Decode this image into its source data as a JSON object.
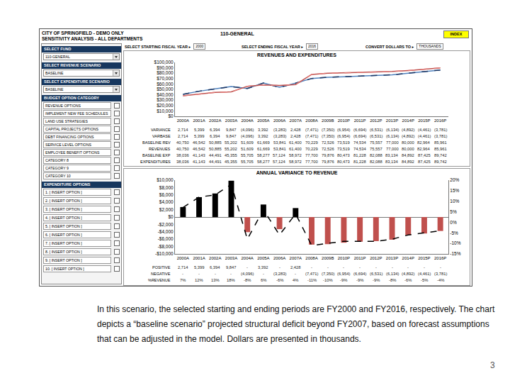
{
  "header": {
    "title_lines": [
      "CITY OF SPRINGFIELD - DEMO ONLY",
      "SENSITIVITY ANALYSIS - ALL DEPARTMENTS"
    ],
    "fund": "110-GENERAL",
    "button": "INDEX"
  },
  "controls": [
    {
      "label": "SELECT STARTING FISCAL YEAR ▸",
      "value": "2000"
    },
    {
      "label": "SELECT ENDING FISCAL YEAR ▸",
      "value": "2016"
    },
    {
      "label": "CONVERT DOLLARS TO ▸",
      "value": "THOUSANDS"
    }
  ],
  "panel": {
    "selectors": [
      {
        "label": "SELECT FUND",
        "value": "110-GENERAL"
      },
      {
        "label": "SELECT REVENUE SCENARIO",
        "value": "BASELINE"
      },
      {
        "label": "SELECT EXPENDITURE SCENARIO",
        "value": "BASELINE"
      }
    ],
    "lists": [
      {
        "label": "BUDGET OPTION CATEGORY",
        "items": [
          "REVENUE OPTIONS",
          "IMPLEMENT NEW FEE SCHEDULES",
          "LAND USE STRATEGIES",
          "CAPITAL PROJECTS OPTIONS",
          "DEBT FINANCING OPTIONS",
          "SERVICE LEVEL OPTIONS",
          "EMPLOYEE BENEFIT OPTIONS",
          "CATEGORY 8",
          "CATEGORY 9",
          "CATEGORY 10"
        ]
      },
      {
        "label": "EXPENDITURE OPTIONS",
        "items": [
          "1. [ INSERT OPTION ]",
          "2. [ INSERT OPTION ]",
          "3. [ INSERT OPTION ]",
          "4. [ INSERT OPTION ]",
          "5. [ INSERT OPTION ]",
          "6. [ INSERT OPTION ]",
          "7. [ INSERT OPTION ]",
          "8. [ INSERT OPTION ]",
          "9. [ INSERT OPTION ]",
          "10. [ INSERT OPTION ]"
        ]
      }
    ]
  },
  "chart_data": [
    {
      "type": "line",
      "title": "REVENUES AND EXPENDITURES",
      "categories": [
        "2000A",
        "2001A",
        "2002A",
        "2003A",
        "2004A",
        "2005A",
        "2006A",
        "2007A",
        "2008A",
        "2009B",
        "2010P",
        "2011P",
        "2012P",
        "2013P",
        "2014P",
        "2015P",
        "2016P"
      ],
      "ylim": [
        0,
        100000
      ],
      "yticks": [
        {
          "value": 0,
          "label": "$0"
        },
        {
          "value": 10000,
          "label": "$10,000"
        },
        {
          "value": 20000,
          "label": "$20,000"
        },
        {
          "value": 30000,
          "label": "$30,000"
        },
        {
          "value": 40000,
          "label": "$40,000"
        },
        {
          "value": 50000,
          "label": "$50,000"
        },
        {
          "value": 60000,
          "label": "$60,000"
        },
        {
          "value": 70000,
          "label": "$70,000"
        },
        {
          "value": 80000,
          "label": "$80,000"
        },
        {
          "value": 90000,
          "label": "$90,000"
        },
        {
          "value": 100000,
          "label": "$100,000"
        }
      ],
      "grid": false,
      "table_rows": [
        {
          "name": "VARIANCE",
          "cells": [
            "2,714",
            "5,399",
            "6,394",
            "9,847",
            "(4,096)",
            "3,392",
            "(3,283)",
            "2,428",
            "(7,471)",
            "(7,350)",
            "(6,954)",
            "(6,694)",
            "(6,531)",
            "(6,134)",
            "(4,892)",
            "(4,461)",
            "(3,781)"
          ]
        },
        {
          "name": "VARBASE",
          "cells": [
            "2,714",
            "5,399",
            "6,394",
            "9,847",
            "(4,096)",
            "3,392",
            "(3,283)",
            "2,428",
            "(7,471)",
            "(7,350)",
            "(6,954)",
            "(6,694)",
            "(6,531)",
            "(6,134)",
            "(4,892)",
            "(4,461)",
            "(3,781)"
          ]
        }
      ],
      "series": [
        {
          "name": "BASELINE REV",
          "color": "#4f81bd",
          "line_style": "solid",
          "values": [
            40750,
            46542,
            50885,
            55202,
            51609,
            61669,
            53841,
            61400,
            70229,
            72526,
            73519,
            74534,
            75557,
            77000,
            80000,
            82964,
            85961
          ],
          "value_labels": [
            "40,750",
            "46,542",
            "50,885",
            "55,202",
            "51,609",
            "61,669",
            "53,841",
            "61,400",
            "70,229",
            "72,526",
            "73,519",
            "74,534",
            "75,557",
            "77,000",
            "80,000",
            "82,964",
            "85,961"
          ]
        },
        {
          "name": "REVENUES",
          "color": "#1f3864",
          "line_style": "dash",
          "values": [
            40750,
            46542,
            50885,
            55202,
            51609,
            61669,
            53841,
            61400,
            70229,
            72526,
            73519,
            74534,
            75557,
            77000,
            80000,
            82964,
            85961
          ],
          "value_labels": [
            "40,750",
            "46,542",
            "50,885",
            "55,202",
            "51,609",
            "61,669",
            "53,841",
            "61,400",
            "70,229",
            "72,526",
            "73,519",
            "74,534",
            "75,557",
            "77,000",
            "80,000",
            "82,964",
            "85,961"
          ]
        },
        {
          "name": "BASELINE EXP",
          "color": "#c0504d",
          "line_style": "solid",
          "values": [
            38036,
            41143,
            44491,
            45355,
            55705,
            58277,
            57124,
            58972,
            77700,
            79876,
            80473,
            81228,
            82088,
            83134,
            84892,
            87425,
            89742
          ],
          "value_labels": [
            "38,036",
            "41,143",
            "44,491",
            "45,355",
            "55,705",
            "58,277",
            "57,124",
            "58,972",
            "77,700",
            "79,876",
            "80,473",
            "81,228",
            "82,088",
            "83,134",
            "84,892",
            "87,425",
            "89,742"
          ]
        },
        {
          "name": "EXPENDITURES",
          "color": "#e07b78",
          "line_style": "dash",
          "values": [
            38036,
            41143,
            44491,
            45355,
            55705,
            58277,
            57124,
            58972,
            77700,
            79876,
            80473,
            81228,
            82088,
            83134,
            84892,
            87425,
            89742
          ],
          "value_labels": [
            "38,036",
            "41,143",
            "44,491",
            "45,355",
            "55,705",
            "58,277",
            "57,124",
            "58,972",
            "77,700",
            "79,876",
            "80,473",
            "81,228",
            "82,088",
            "83,134",
            "84,892",
            "87,425",
            "89,742"
          ]
        }
      ]
    },
    {
      "type": "bar",
      "title": "ANNUAL VARIANCE TO REVENUE",
      "categories": [
        "2000A",
        "2001A",
        "2002A",
        "2003A",
        "2004A",
        "2005A",
        "2006A",
        "2007A",
        "2008A",
        "2009B",
        "2010P",
        "2011P",
        "2012P",
        "2013P",
        "2014P",
        "2015P",
        "2016P"
      ],
      "ylim": [
        -10000,
        10000
      ],
      "yticks": [
        {
          "value": -10000,
          "label": "-$10,000"
        },
        {
          "value": -8000,
          "label": "-$8,000"
        },
        {
          "value": -6000,
          "label": "-$6,000"
        },
        {
          "value": -4000,
          "label": "-$4,000"
        },
        {
          "value": -2000,
          "label": "-$2,000"
        },
        {
          "value": 0,
          "label": "$0"
        },
        {
          "value": 2000,
          "label": "$2,000"
        },
        {
          "value": 4000,
          "label": "$4,000"
        },
        {
          "value": 6000,
          "label": "$6,000"
        },
        {
          "value": 8000,
          "label": "$8,000"
        },
        {
          "value": 10000,
          "label": "$10,000"
        }
      ],
      "y2lim": [
        -15,
        20
      ],
      "y2ticks": [
        {
          "value": -15,
          "label": "-15%"
        },
        {
          "value": -10,
          "label": "-10%"
        },
        {
          "value": -5,
          "label": "-5%"
        },
        {
          "value": 0,
          "label": "0%"
        },
        {
          "value": 5,
          "label": "5%"
        },
        {
          "value": 10,
          "label": "10%"
        },
        {
          "value": 15,
          "label": "15%"
        },
        {
          "value": 20,
          "label": "20%"
        }
      ],
      "grid": false,
      "series": [
        {
          "name": "POSITIVE",
          "type": "bar",
          "color": "#000000",
          "values": [
            2714,
            5399,
            6394,
            9847,
            null,
            3392,
            null,
            2428,
            null,
            null,
            null,
            null,
            null,
            null,
            null,
            null,
            null
          ],
          "value_labels": [
            "2,714",
            "5,399",
            "6,394",
            "9,847",
            "-",
            "3,392",
            "-",
            "2,428",
            "-",
            "-",
            "-",
            "-",
            "-",
            "-",
            "-",
            "-",
            "-"
          ]
        },
        {
          "name": "NEGATIVE",
          "type": "bar",
          "color": "#c0504d",
          "values": [
            null,
            null,
            null,
            null,
            -4096,
            null,
            -3283,
            null,
            -7471,
            -7350,
            -6954,
            -6694,
            -6531,
            -6134,
            -4892,
            -4461,
            -3781
          ],
          "value_labels": [
            "-",
            "-",
            "-",
            "-",
            "(4,096)",
            "-",
            "(3,283)",
            "-",
            "(7,471)",
            "(7,350)",
            "(6,954)",
            "(6,694)",
            "(6,531)",
            "(6,134)",
            "(4,892)",
            "(4,461)",
            "(3,781)"
          ]
        },
        {
          "name": "%REVENUE",
          "type": "line",
          "axis": "y2",
          "color": "#000000",
          "line_style": "dash",
          "values": [
            7,
            12,
            13,
            18,
            -8,
            6,
            -6,
            4,
            -11,
            -10,
            -9,
            -9,
            -9,
            -8,
            -6,
            -5,
            -4
          ],
          "value_labels": [
            "7%",
            "12%",
            "13%",
            "18%",
            "-8%",
            "6%",
            "-6%",
            "4%",
            "-11%",
            "-10%",
            "-9%",
            "-9%",
            "-9%",
            "-8%",
            "-6%",
            "-5%",
            "-4%"
          ]
        }
      ]
    }
  ],
  "caption": "In this scenario, the selected starting and ending periods are FY2000 and FY2016, respectively. The chart depicts a “baseline scenario” projected structural deficit beyond FY2007, based on forecast assumptions that can be adjusted in the model. Dollars are presented in thousands.",
  "page_number": "3"
}
